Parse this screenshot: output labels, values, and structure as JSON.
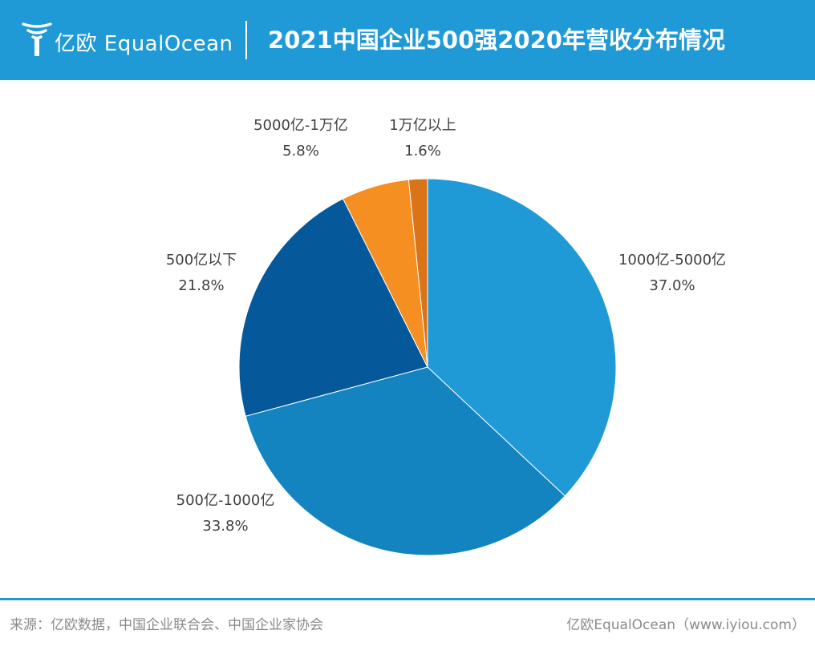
{
  "header": {
    "logo_text": "亿欧 EqualOcean",
    "logo_icon": "equalocean-logo-icon",
    "title": "2021中国企业500强2020年营收分布情况"
  },
  "colors": {
    "header_bg": "#1f9ad6",
    "slices": [
      "#1f9ad6",
      "#1484c0",
      "#05599a",
      "#f58f21",
      "#db7318"
    ]
  },
  "chart_data": {
    "type": "pie",
    "title": "2021中国企业500强2020年营收分布情况",
    "slices": [
      {
        "label": "1000亿-5000亿",
        "value": 37.0,
        "value_label": "37.0%"
      },
      {
        "label": "500亿-1000亿",
        "value": 33.8,
        "value_label": "33.8%"
      },
      {
        "label": "500亿以下",
        "value": 21.8,
        "value_label": "21.8%"
      },
      {
        "label": "5000亿-1万亿",
        "value": 5.8,
        "value_label": "5.8%"
      },
      {
        "label": "1万亿以上",
        "value": 1.6,
        "value_label": "1.6%"
      }
    ],
    "start_angle": "12 o'clock",
    "direction": "clockwise"
  },
  "footer": {
    "source": "来源：亿欧数据，中国企业联合会、中国企业家协会",
    "brand": "亿欧EqualOcean（www.iyiou.com）"
  }
}
